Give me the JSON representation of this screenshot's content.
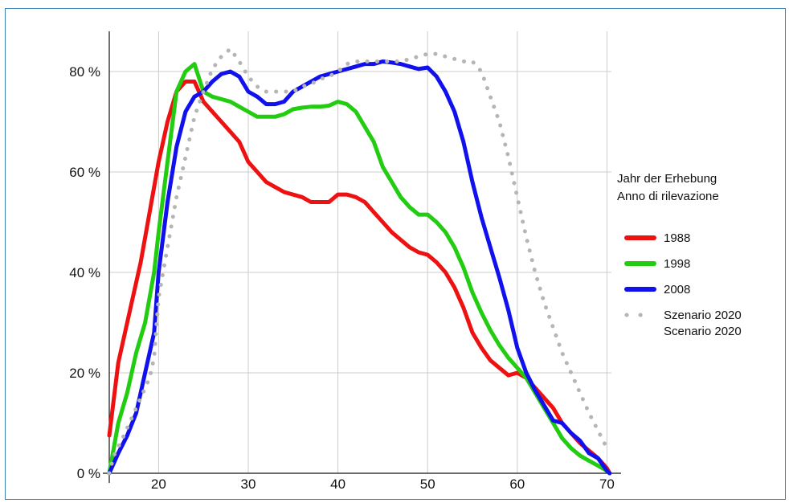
{
  "chart_data": {
    "type": "line",
    "title": "",
    "xlabel": "",
    "ylabel": "",
    "xlim": [
      14.5,
      70.5
    ],
    "ylim": [
      0,
      88
    ],
    "x_ticks": [
      20,
      30,
      40,
      50,
      60,
      70
    ],
    "x_tick_labels": [
      "20",
      "30",
      "40",
      "50",
      "60",
      "70"
    ],
    "y_ticks": [
      0,
      20,
      40,
      60,
      80
    ],
    "y_tick_labels": [
      "0 %",
      "20 %",
      "40 %",
      "60 %",
      "80 %"
    ],
    "grid": true,
    "legend": {
      "placement": "right",
      "title_lines": [
        "Jahr der Erhebung",
        "Anno di rilevazione"
      ]
    },
    "series": [
      {
        "name": "1988",
        "legend_lines": [
          "1988"
        ],
        "color": "#ee1111",
        "style": "solid",
        "points": [
          [
            14.5,
            7.5
          ],
          [
            15.5,
            22
          ],
          [
            17,
            34
          ],
          [
            18,
            42
          ],
          [
            20,
            62
          ],
          [
            21,
            70
          ],
          [
            22,
            76
          ],
          [
            23,
            78
          ],
          [
            24,
            78
          ],
          [
            25,
            74
          ],
          [
            26,
            72
          ],
          [
            27,
            70
          ],
          [
            28,
            68
          ],
          [
            29,
            66
          ],
          [
            30,
            62
          ],
          [
            31,
            60
          ],
          [
            32,
            58
          ],
          [
            33,
            57
          ],
          [
            34,
            56
          ],
          [
            36,
            55
          ],
          [
            37,
            54
          ],
          [
            39,
            54
          ],
          [
            40,
            55.5
          ],
          [
            41,
            55.5
          ],
          [
            42,
            55
          ],
          [
            43,
            54
          ],
          [
            44,
            52
          ],
          [
            45,
            50
          ],
          [
            46,
            48
          ],
          [
            47,
            46.5
          ],
          [
            48,
            45
          ],
          [
            49,
            44
          ],
          [
            50,
            43.5
          ],
          [
            51,
            42
          ],
          [
            52,
            40
          ],
          [
            53,
            37
          ],
          [
            54,
            33
          ],
          [
            55,
            28
          ],
          [
            56,
            25
          ],
          [
            57,
            22.5
          ],
          [
            58,
            21
          ],
          [
            59,
            19.5
          ],
          [
            60,
            20
          ],
          [
            61,
            19
          ],
          [
            62,
            17
          ],
          [
            63,
            15
          ],
          [
            64,
            13
          ],
          [
            65,
            10
          ],
          [
            66,
            8
          ],
          [
            67,
            6
          ],
          [
            68,
            4.5
          ],
          [
            69,
            3
          ],
          [
            70,
            1
          ],
          [
            70.3,
            0
          ]
        ]
      },
      {
        "name": "1998",
        "legend_lines": [
          "1998"
        ],
        "color": "#22cc11",
        "style": "solid",
        "points": [
          [
            14.5,
            0
          ],
          [
            15.5,
            10
          ],
          [
            16.5,
            16
          ],
          [
            17.5,
            24
          ],
          [
            18.5,
            30
          ],
          [
            19.5,
            40
          ],
          [
            20,
            48
          ],
          [
            21,
            62
          ],
          [
            22,
            76
          ],
          [
            23,
            80
          ],
          [
            24,
            81.5
          ],
          [
            25,
            76
          ],
          [
            26,
            75
          ],
          [
            27,
            74.5
          ],
          [
            28,
            74
          ],
          [
            29,
            73
          ],
          [
            30,
            72
          ],
          [
            31,
            71
          ],
          [
            32,
            71
          ],
          [
            33,
            71
          ],
          [
            34,
            71.5
          ],
          [
            35,
            72.5
          ],
          [
            36,
            72.8
          ],
          [
            37,
            73
          ],
          [
            38,
            73
          ],
          [
            39,
            73.2
          ],
          [
            40,
            74
          ],
          [
            41,
            73.5
          ],
          [
            42,
            72
          ],
          [
            43,
            69
          ],
          [
            44,
            66
          ],
          [
            45,
            61
          ],
          [
            46,
            58
          ],
          [
            47,
            55
          ],
          [
            48,
            53
          ],
          [
            49,
            51.5
          ],
          [
            50,
            51.5
          ],
          [
            51,
            50
          ],
          [
            52,
            48
          ],
          [
            53,
            45
          ],
          [
            54,
            41
          ],
          [
            55,
            36
          ],
          [
            56,
            32
          ],
          [
            57,
            28.5
          ],
          [
            58,
            25.5
          ],
          [
            59,
            23
          ],
          [
            60,
            21
          ],
          [
            61,
            19
          ],
          [
            62,
            16
          ],
          [
            63,
            13
          ],
          [
            64,
            10
          ],
          [
            65,
            7
          ],
          [
            66,
            5
          ],
          [
            67,
            3.5
          ],
          [
            68,
            2.5
          ],
          [
            69,
            1.5
          ],
          [
            70,
            0.5
          ],
          [
            70.3,
            0
          ]
        ]
      },
      {
        "name": "2008",
        "legend_lines": [
          "2008"
        ],
        "color": "#1111ee",
        "style": "solid",
        "points": [
          [
            14.5,
            0
          ],
          [
            15.5,
            4
          ],
          [
            16.5,
            7.5
          ],
          [
            17.5,
            12
          ],
          [
            18.5,
            20
          ],
          [
            19.5,
            28
          ],
          [
            20,
            40
          ],
          [
            21,
            54
          ],
          [
            22,
            65
          ],
          [
            23,
            72
          ],
          [
            24,
            75
          ],
          [
            25,
            76
          ],
          [
            26,
            78
          ],
          [
            27,
            79.5
          ],
          [
            28,
            80
          ],
          [
            29,
            79
          ],
          [
            30,
            76
          ],
          [
            31,
            75
          ],
          [
            32,
            73.5
          ],
          [
            33,
            73.5
          ],
          [
            34,
            74
          ],
          [
            35,
            76
          ],
          [
            36,
            77
          ],
          [
            37,
            78
          ],
          [
            38,
            79
          ],
          [
            39,
            79.5
          ],
          [
            40,
            80
          ],
          [
            41,
            80.5
          ],
          [
            42,
            81
          ],
          [
            43,
            81.5
          ],
          [
            44,
            81.5
          ],
          [
            45,
            82
          ],
          [
            46,
            81.8
          ],
          [
            47,
            81.5
          ],
          [
            48,
            81
          ],
          [
            49,
            80.5
          ],
          [
            50,
            80.8
          ],
          [
            51,
            79
          ],
          [
            52,
            76
          ],
          [
            53,
            72
          ],
          [
            54,
            66
          ],
          [
            55,
            58
          ],
          [
            56,
            51
          ],
          [
            57,
            45
          ],
          [
            58,
            39
          ],
          [
            59,
            32.5
          ],
          [
            60,
            25
          ],
          [
            61,
            20
          ],
          [
            62,
            16.5
          ],
          [
            63,
            13.5
          ],
          [
            64,
            10.5
          ],
          [
            65,
            10
          ],
          [
            66,
            8
          ],
          [
            67,
            6.5
          ],
          [
            68,
            4
          ],
          [
            69,
            3
          ],
          [
            70,
            0.5
          ],
          [
            70.3,
            0
          ]
        ]
      },
      {
        "name": "Szenario 2020 Scenario 2020",
        "legend_lines": [
          "Szenario 2020",
          "Scenario 2020"
        ],
        "color": "#b5b5b5",
        "style": "dotted",
        "points": [
          [
            14.5,
            0
          ],
          [
            15,
            3.5
          ],
          [
            16,
            7
          ],
          [
            17,
            11
          ],
          [
            18,
            15
          ],
          [
            19,
            19
          ],
          [
            19.5,
            23
          ],
          [
            20,
            35
          ],
          [
            21,
            45
          ],
          [
            22,
            55
          ],
          [
            23,
            63
          ],
          [
            24,
            71
          ],
          [
            25,
            76
          ],
          [
            26,
            80.5
          ],
          [
            27,
            83
          ],
          [
            28,
            84.5
          ],
          [
            29,
            82
          ],
          [
            30,
            79
          ],
          [
            31,
            77
          ],
          [
            32,
            76
          ],
          [
            33,
            76
          ],
          [
            34,
            76
          ],
          [
            35,
            76
          ],
          [
            36,
            77
          ],
          [
            37,
            77.5
          ],
          [
            38,
            78.5
          ],
          [
            39,
            79
          ],
          [
            40,
            80
          ],
          [
            41,
            81.5
          ],
          [
            42,
            82
          ],
          [
            43,
            82
          ],
          [
            44,
            82
          ],
          [
            45,
            82
          ],
          [
            46,
            82
          ],
          [
            47,
            82
          ],
          [
            48,
            82.5
          ],
          [
            49,
            83
          ],
          [
            50,
            83.5
          ],
          [
            51,
            83.5
          ],
          [
            52,
            83
          ],
          [
            53,
            82.5
          ],
          [
            54,
            82
          ],
          [
            55,
            82
          ],
          [
            56,
            80
          ],
          [
            57,
            75
          ],
          [
            58,
            70
          ],
          [
            59,
            63
          ],
          [
            60,
            55
          ],
          [
            61,
            47
          ],
          [
            62,
            40
          ],
          [
            63,
            34
          ],
          [
            64,
            29
          ],
          [
            65,
            24
          ],
          [
            66,
            20
          ],
          [
            67,
            16
          ],
          [
            68,
            12
          ],
          [
            69,
            8.5
          ],
          [
            70,
            5
          ]
        ]
      }
    ]
  }
}
